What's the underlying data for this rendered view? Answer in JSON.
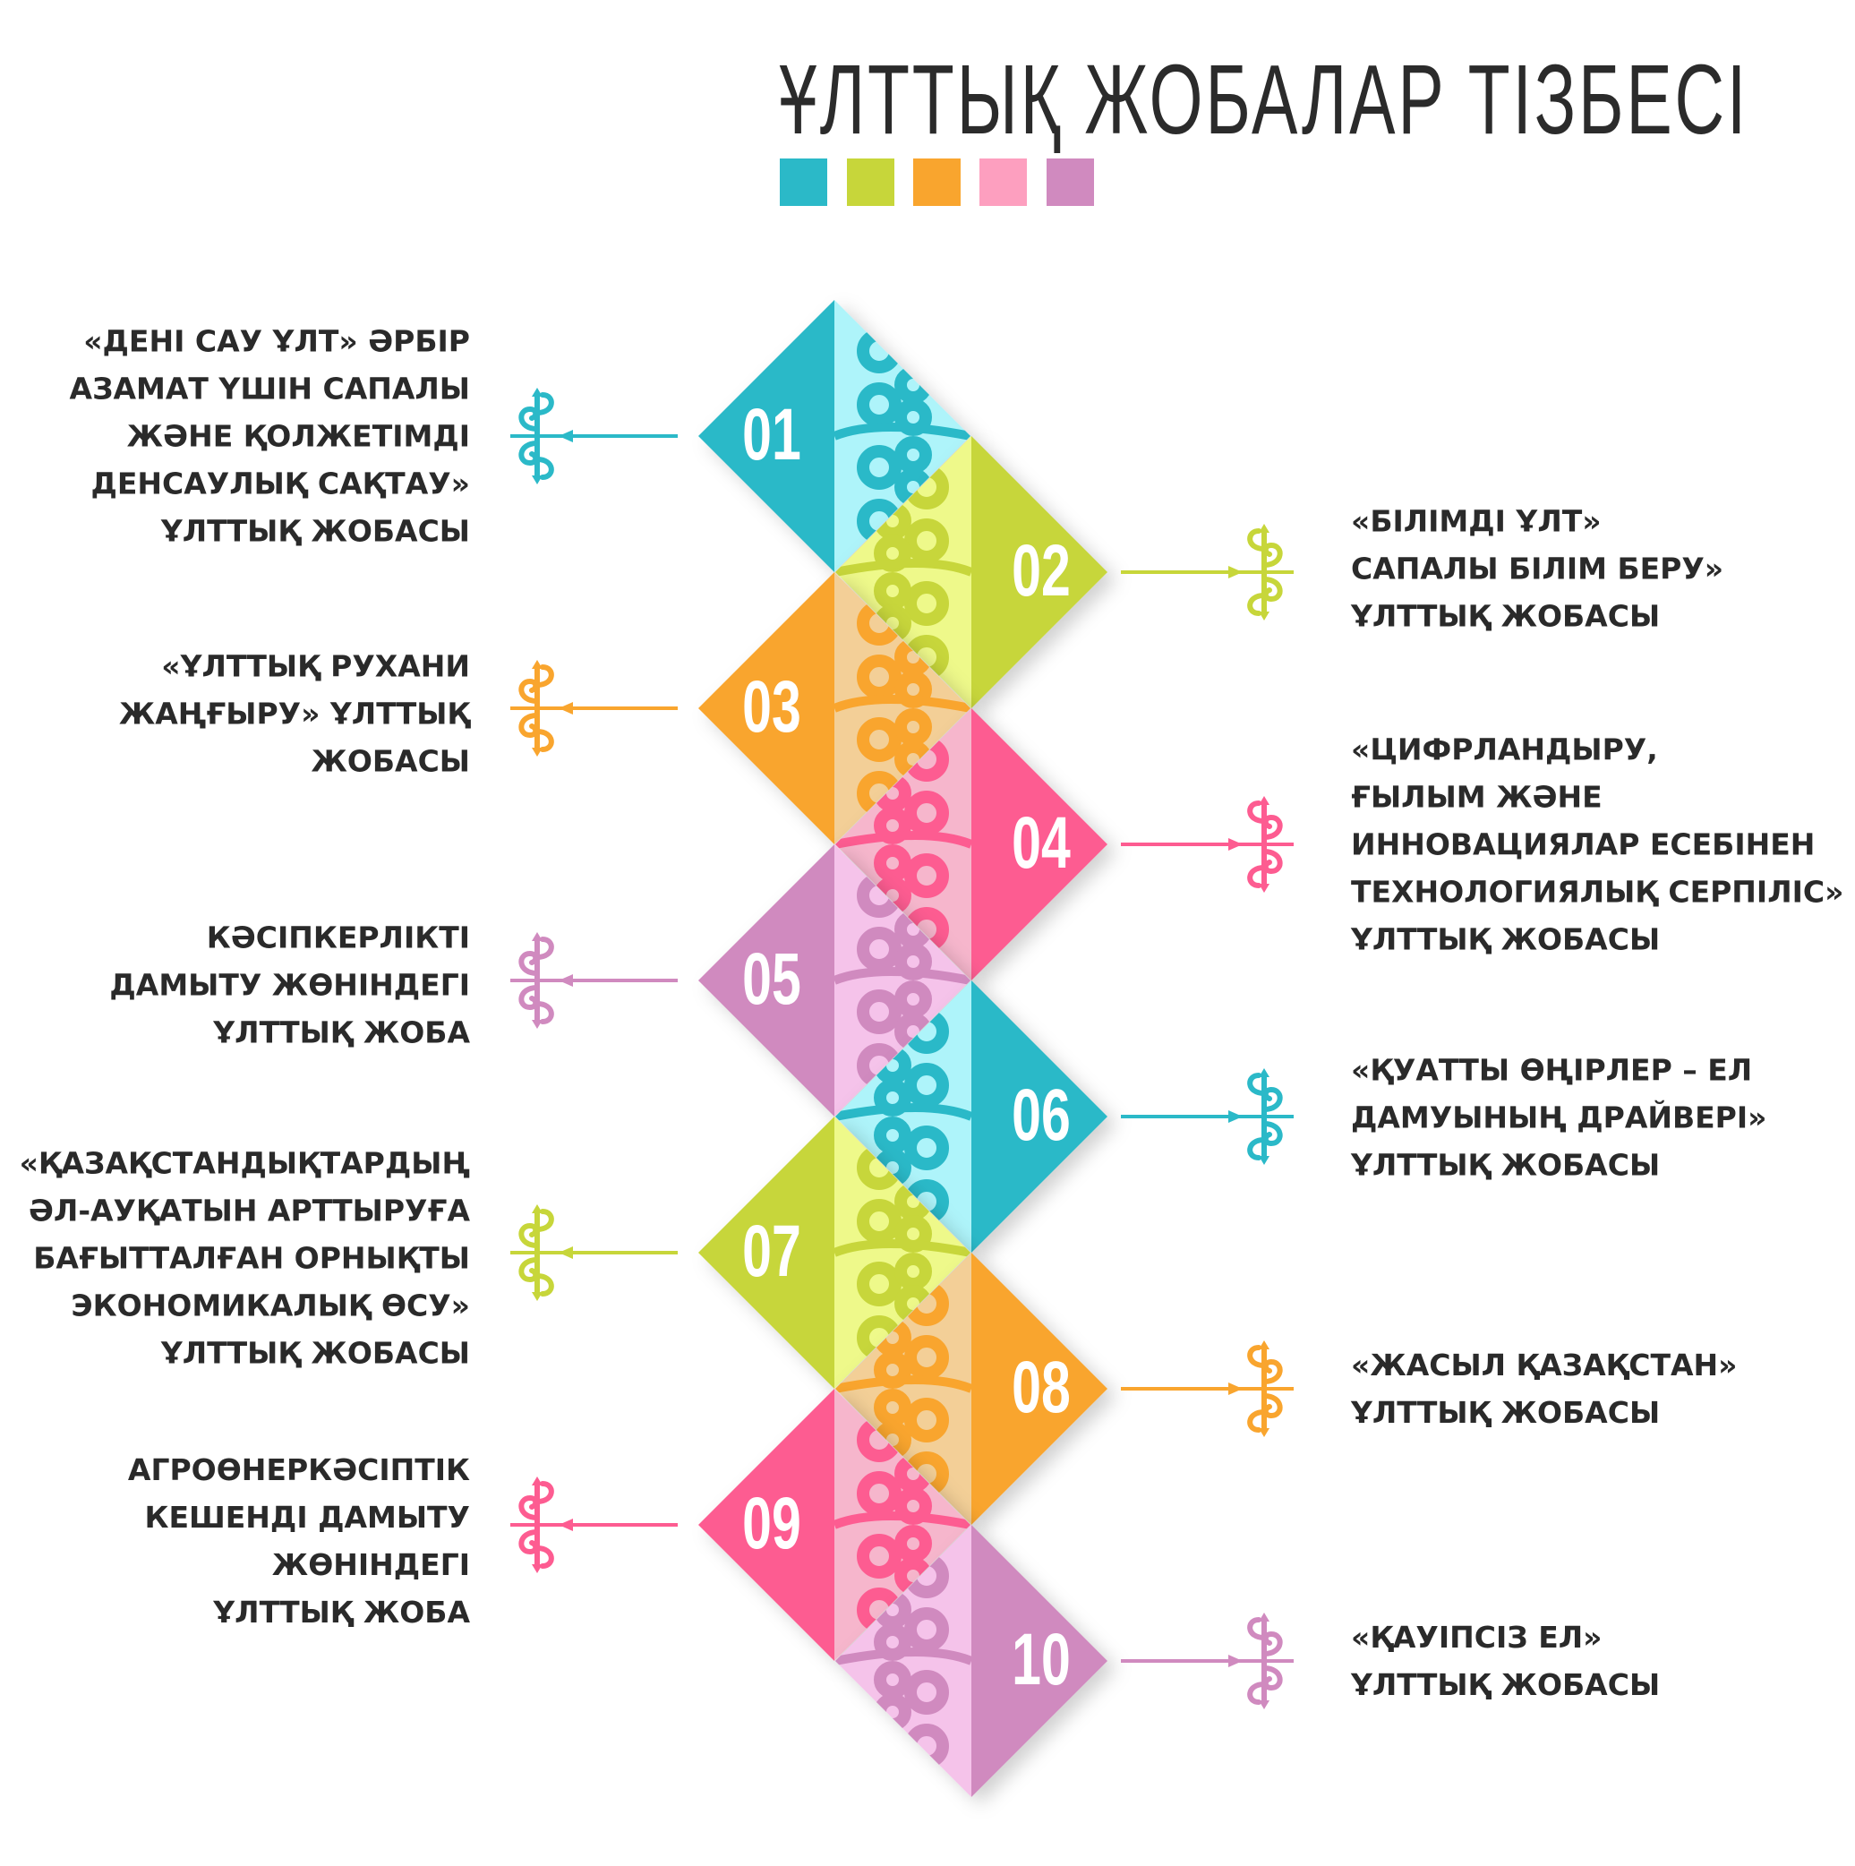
{
  "title": "ҰЛТТЫҚ ЖОБАЛАР ТІЗБЕСІ",
  "palette": [
    {
      "name": "teal",
      "main": "#2bb9c8",
      "light": "#aef4fa"
    },
    {
      "name": "lime",
      "main": "#c7d63a",
      "light": "#eef98a"
    },
    {
      "name": "orange",
      "main": "#f9a52e",
      "light": "#f3cf97"
    },
    {
      "name": "pink",
      "main": "#fd5c91",
      "light": "#f6b6cc"
    },
    {
      "name": "purple",
      "main": "#d08abf",
      "light": "#f5c3ea"
    }
  ],
  "items": [
    {
      "number": "01",
      "color": 0,
      "side": "left",
      "text": "«ДЕНІ САУ ҰЛТ» ӘРБІР\nАЗАМАТ ҮШІН САПАЛЫ\nЖӘНЕ ҚОЛЖЕТІМДІ\nДЕНСАУЛЫҚ САҚТАУ»\nҰЛТТЫҚ ЖОБАСЫ"
    },
    {
      "number": "02",
      "color": 1,
      "side": "right",
      "text": "«БІЛІМДІ ҰЛТ»\nСАПАЛЫ БІЛІМ БЕРУ»\nҰЛТТЫҚ ЖОБАСЫ"
    },
    {
      "number": "03",
      "color": 2,
      "side": "left",
      "text": "«ҰЛТТЫҚ РУХАНИ\nЖАҢҒЫРУ» ҰЛТТЫҚ\nЖОБАСЫ"
    },
    {
      "number": "04",
      "color": 3,
      "side": "right",
      "text": " «ЦИФРЛАНДЫРУ,\nҒЫЛЫМ ЖӘНЕ\nИННОВАЦИЯЛАР ЕСЕБІНЕН\nТЕХНОЛОГИЯЛЫҚ СЕРПІЛІС»\nҰЛТТЫҚ ЖОБАСЫ"
    },
    {
      "number": "05",
      "color": 4,
      "side": "left",
      "text": "КӘСІПКЕРЛІКТІ\nДАМЫТУ ЖӨНІНДЕГІ\nҰЛТТЫҚ ЖОБА"
    },
    {
      "number": "06",
      "color": 0,
      "side": "right",
      "text": "«ҚУАТТЫ ӨҢІРЛЕР – ЕЛ\nДАМУЫНЫҢ ДРАЙВЕРІ»\nҰЛТТЫҚ ЖОБАСЫ"
    },
    {
      "number": "07",
      "color": 1,
      "side": "left",
      "text": "«ҚАЗАҚСТАНДЫҚТАРДЫҢ\nӘЛ-АУҚАТЫН АРТТЫРУҒА\nБАҒЫТТАЛҒАН ОРНЫҚТЫ\nЭКОНОМИКАЛЫҚ ӨСУ»\nҰЛТТЫҚ ЖОБАСЫ"
    },
    {
      "number": "08",
      "color": 2,
      "side": "right",
      "text": "«ЖАСЫЛ ҚАЗАҚСТАН»\nҰЛТТЫҚ ЖОБАСЫ"
    },
    {
      "number": "09",
      "color": 3,
      "side": "left",
      "text": "АГРОӨНЕРКӘСІПТІК\nКЕШЕНДІ ДАМЫТУ\nЖӨНІНДЕГІ\nҰЛТТЫҚ ЖОБА"
    },
    {
      "number": "10",
      "color": 4,
      "side": "right",
      "text": "«ҚАУІПСІЗ ЕЛ»\nҰЛТТЫҚ ЖОБАСЫ"
    }
  ],
  "icons": {
    "connector": "kazakh-ornament-icon"
  }
}
